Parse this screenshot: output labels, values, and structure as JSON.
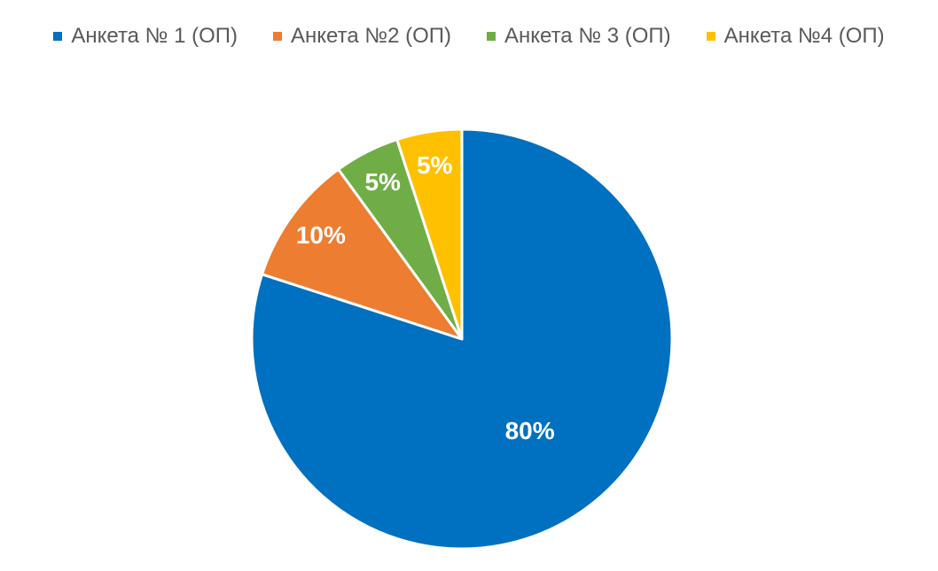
{
  "chart_data": {
    "type": "pie",
    "categories": [
      "Анкета № 1 (ОП)",
      "Анкета №2 (ОП)",
      "Анкета № 3 (ОП)",
      "Анкета №4 (ОП)"
    ],
    "values": [
      80,
      10,
      5,
      5
    ],
    "value_labels": [
      "80%",
      "10%",
      "5%",
      "5%"
    ],
    "colors": [
      "#0070C0",
      "#ED7D31",
      "#70AD47",
      "#FFC000"
    ],
    "legend": "top"
  }
}
